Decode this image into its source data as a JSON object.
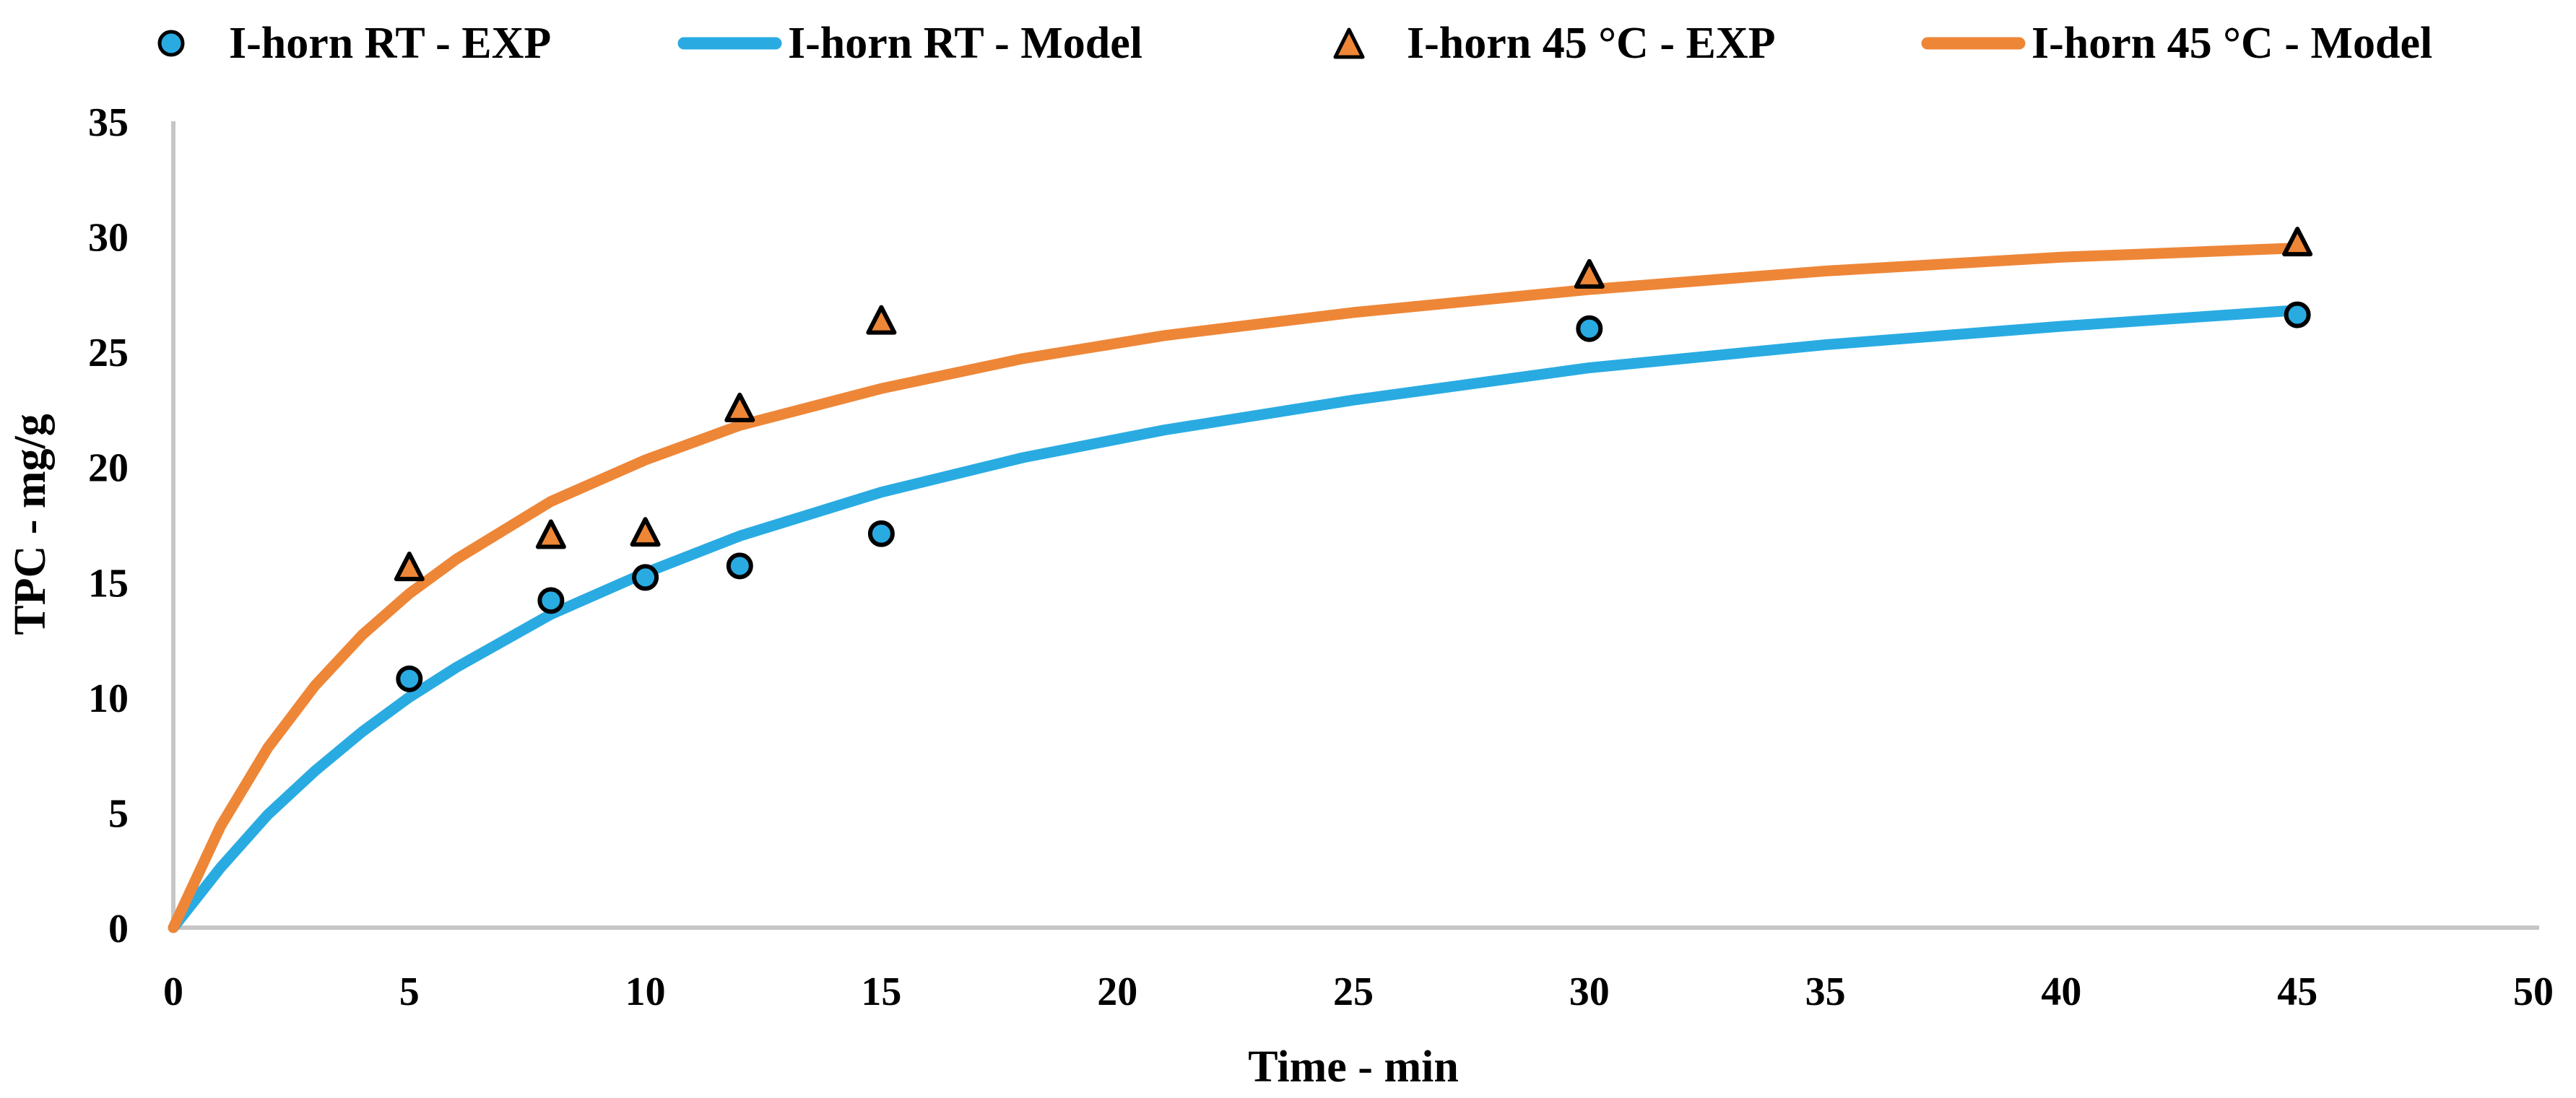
{
  "legend": {
    "items": [
      {
        "label": "I-horn RT - EXP",
        "marker": "circle",
        "color": "#29ABE2"
      },
      {
        "label": "I-horn RT - Model",
        "marker": "line",
        "color": "#29ABE2"
      },
      {
        "label": "I-horn 45 °C - EXP",
        "marker": "triangle",
        "color": "#EE8637"
      },
      {
        "label": "I-horn 45 °C - Model",
        "marker": "line",
        "color": "#EE8637"
      }
    ]
  },
  "chart_data": {
    "type": "scatter",
    "title": "",
    "xlabel": "Time - min",
    "ylabel": "TPC - mg/g",
    "xlim": [
      0,
      50
    ],
    "ylim": [
      0,
      35
    ],
    "xticks": [
      0,
      5,
      10,
      15,
      20,
      25,
      30,
      35,
      40,
      45,
      50
    ],
    "yticks": [
      0,
      5,
      10,
      15,
      20,
      25,
      30,
      35
    ],
    "grid": false,
    "legend_position": "top",
    "axis_color": "#C6C6C6",
    "series": [
      {
        "name": "I-horn RT - EXP",
        "type": "scatter",
        "marker": "circle",
        "color": "#29ABE2",
        "x": [
          5,
          8,
          10,
          12,
          15,
          30,
          45
        ],
        "y": [
          10.8,
          14.2,
          15.2,
          15.7,
          17.1,
          26.0,
          26.6
        ]
      },
      {
        "name": "I-horn RT - Model",
        "type": "line",
        "color": "#29ABE2",
        "x": [
          0,
          1,
          2,
          3,
          4,
          5,
          6,
          8,
          10,
          12,
          15,
          18,
          21,
          25,
          30,
          35,
          40,
          45
        ],
        "y": [
          0,
          2.6,
          4.9,
          6.8,
          8.5,
          10.0,
          11.3,
          13.6,
          15.4,
          17.0,
          18.9,
          20.4,
          21.6,
          22.9,
          24.3,
          25.3,
          26.1,
          26.8
        ]
      },
      {
        "name": "I-horn 45 °C - EXP",
        "type": "scatter",
        "marker": "triangle",
        "color": "#EE8637",
        "x": [
          5,
          8,
          10,
          12,
          15,
          30,
          45
        ],
        "y": [
          15.6,
          17.0,
          17.1,
          22.5,
          26.3,
          28.3,
          29.7
        ]
      },
      {
        "name": "I-horn 45 °C - Model",
        "type": "line",
        "color": "#EE8637",
        "x": [
          0,
          1,
          2,
          3,
          4,
          5,
          6,
          8,
          10,
          12,
          15,
          18,
          21,
          25,
          30,
          35,
          40,
          45
        ],
        "y": [
          0,
          4.4,
          7.8,
          10.5,
          12.7,
          14.5,
          16.0,
          18.5,
          20.3,
          21.8,
          23.4,
          24.7,
          25.7,
          26.7,
          27.7,
          28.5,
          29.1,
          29.5
        ]
      }
    ]
  }
}
